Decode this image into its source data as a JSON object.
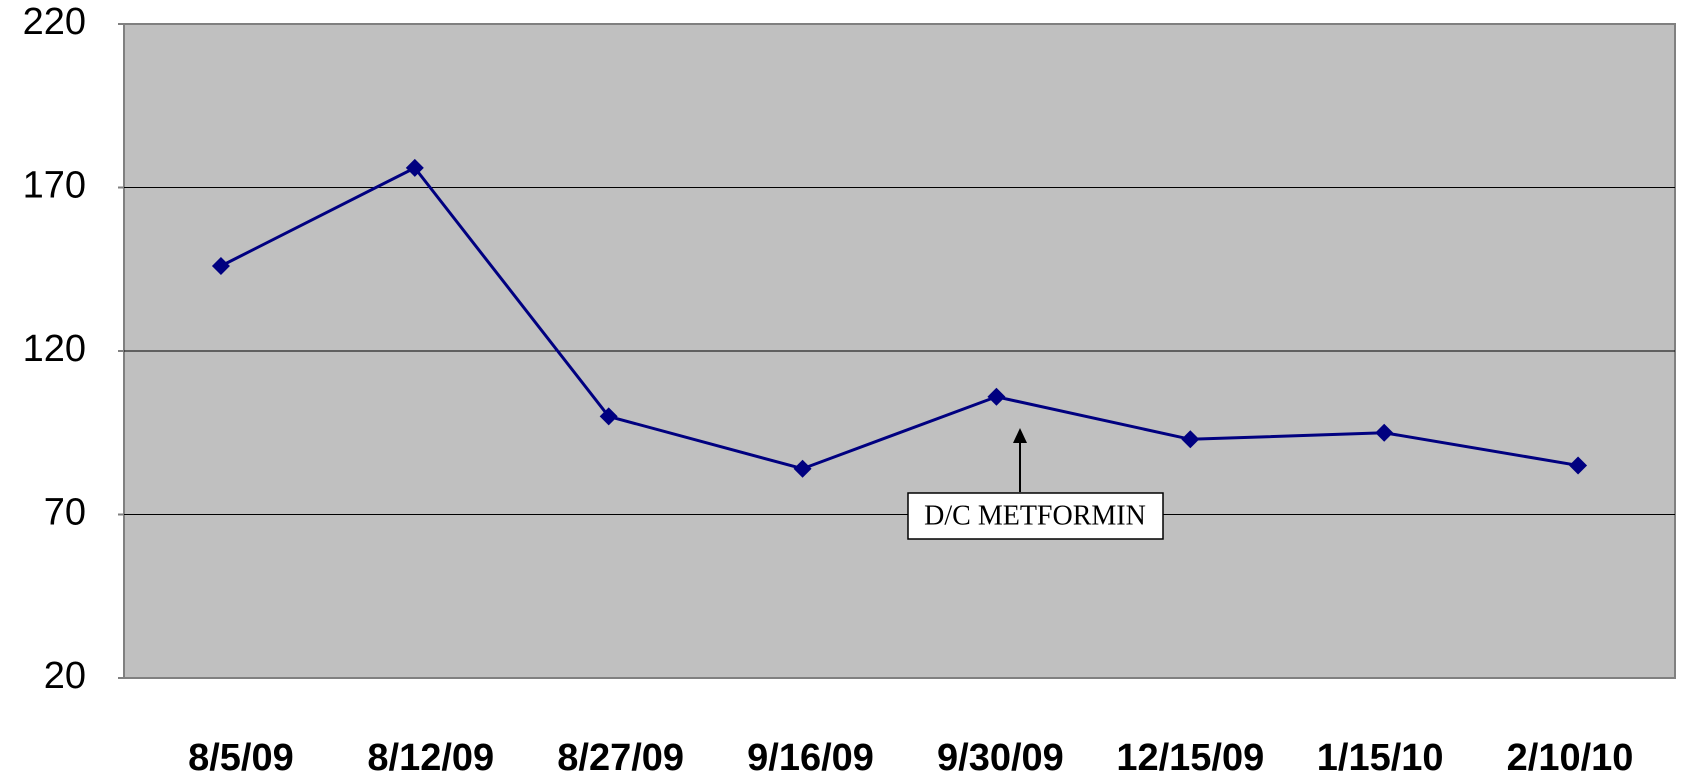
{
  "chart_data": {
    "type": "line",
    "categories": [
      "8/5/09",
      "8/12/09",
      "8/27/09",
      "9/16/09",
      "9/30/09",
      "12/15/09",
      "1/15/10",
      "2/10/10"
    ],
    "series": [
      {
        "color": "#000080",
        "values": [
          146,
          176,
          100,
          84,
          106,
          93,
          95,
          85
        ]
      }
    ],
    "ylim": [
      20,
      220
    ],
    "yticks": [
      20,
      70,
      120,
      170,
      220
    ],
    "grid": true,
    "annotation": "D/C METFORMIN"
  }
}
